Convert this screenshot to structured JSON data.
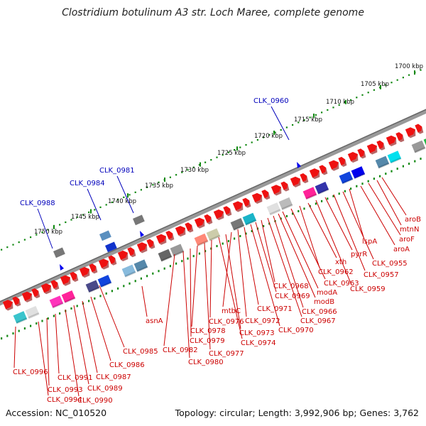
{
  "title": "Clostridium botulinum A3 str. Loch Maree, complete genome",
  "footer": {
    "accession": "Accession: NC_010520",
    "summary": "Topology: circular; Length: 3,992,906 bp; Genes: 3,762"
  },
  "colors": {
    "forward_gene": "#ee1111",
    "feature_label": "#cc0000",
    "highlight_label": "#0000bb",
    "ruler_tick": "#118811",
    "backbone": "#888888"
  },
  "scale": {
    "unit": "kbp",
    "labels": [
      "1700 kbp",
      "1705 kbp",
      "1710 kbp",
      "1715 kbp",
      "1720 kbp",
      "1725 kbp",
      "1730 kbp",
      "1735 kbp",
      "1740 kbp",
      "1745 kbp",
      "1750 kbp"
    ]
  },
  "highlighted_genes": [
    "CLK_0960",
    "CLK_0981",
    "CLK_0984",
    "CLK_0988"
  ],
  "gene_labels": [
    "aroB",
    "mtnN",
    "aroF",
    "aroA",
    "lspA",
    "CLK_0955",
    "CLK_0957",
    "pyrR",
    "CLK_0959",
    "xth",
    "CLK_0962",
    "CLK_0963",
    "modA",
    "modB",
    "CLK_0966",
    "CLK_0967",
    "CLK_0968",
    "CLK_0969",
    "CLK_0970",
    "CLK_0971",
    "CLK_0972",
    "mtbC",
    "CLK_0973",
    "CLK_0974",
    "CLK_0976",
    "CLK_0977",
    "CLK_0978",
    "CLK_0979",
    "CLK_0980",
    "CLK_0982",
    "asnA",
    "CLK_0985",
    "CLK_0986",
    "CLK_0987",
    "CLK_0989",
    "CLK_0990",
    "CLK_0991",
    "CLK_0993",
    "CLK_0994",
    "CLK_0996"
  ]
}
